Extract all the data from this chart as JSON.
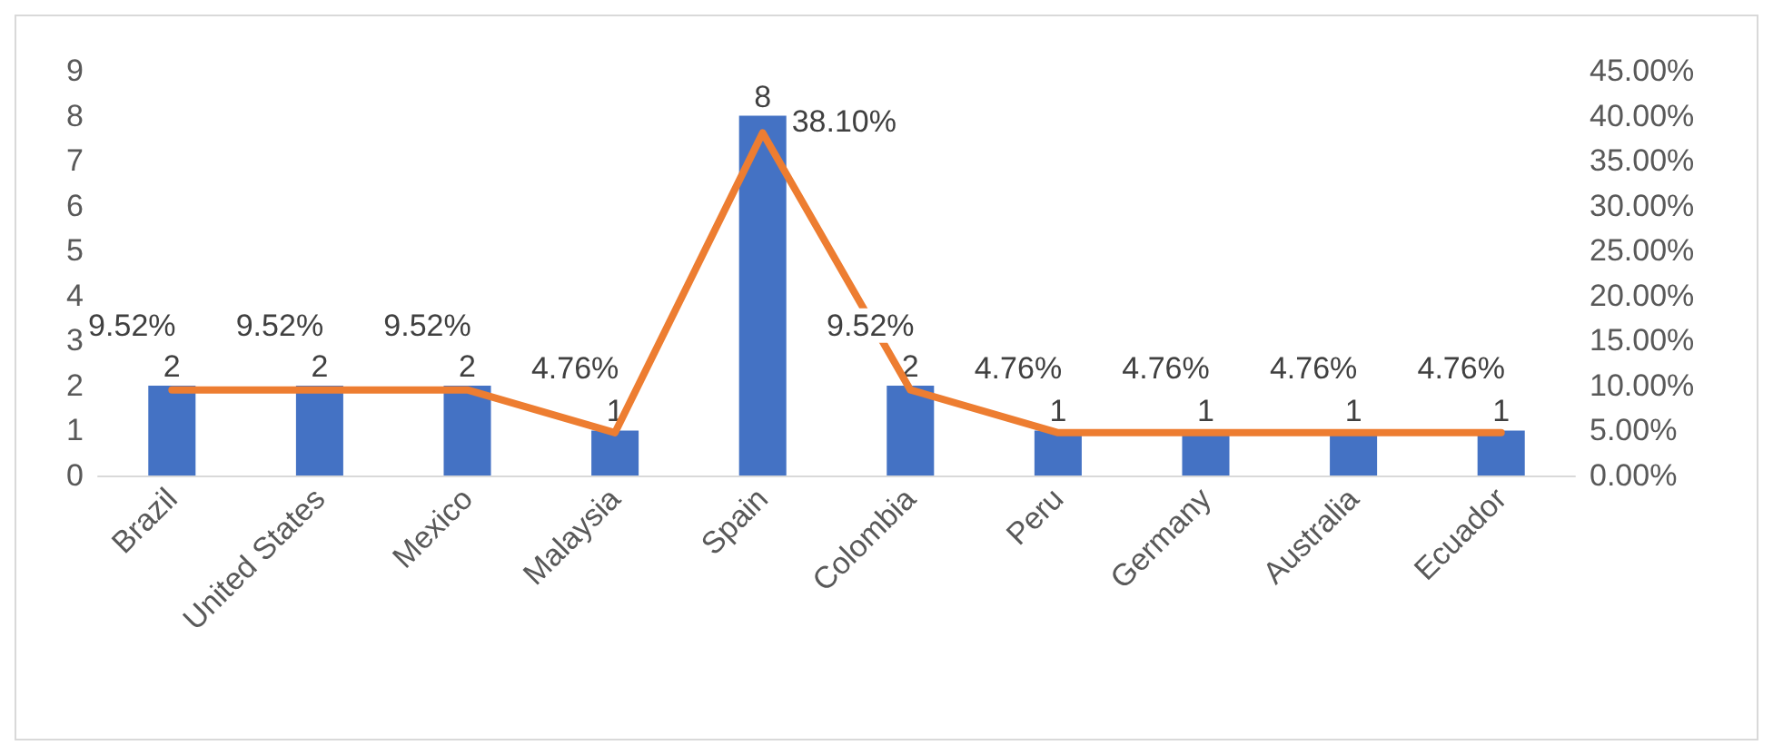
{
  "chart_data": {
    "type": "bar",
    "categories": [
      "Brazil",
      "United States",
      "Mexico",
      "Malaysia",
      "Spain",
      "Colombia",
      "Peru",
      "Germany",
      "Australia",
      "Ecuador"
    ],
    "series": [
      {
        "color": "#4472c4",
        "values": [
          2,
          2,
          2,
          1,
          8,
          2,
          1,
          1,
          1,
          1
        ],
        "value_labels": [
          "2",
          "2",
          "2",
          "1",
          "8",
          "2",
          "1",
          "1",
          "1",
          "1"
        ]
      },
      {
        "type": "line",
        "axis": "y2",
        "color": "#ed7d31",
        "values": [
          9.52,
          9.52,
          9.52,
          4.76,
          38.1,
          9.52,
          4.76,
          4.76,
          4.76,
          4.76
        ],
        "value_labels": [
          "9.52%",
          "9.52%",
          "9.52%",
          "4.76%",
          "38.10%",
          "9.52%",
          "4.76%",
          "4.76%",
          "4.76%",
          "4.76%"
        ]
      }
    ],
    "ylim": [
      0,
      9
    ],
    "yticks": [
      0,
      1,
      2,
      3,
      4,
      5,
      6,
      7,
      8,
      9
    ],
    "y2lim": [
      0,
      45
    ],
    "y2ticks": [
      {
        "value": 0,
        "label": "0.00%"
      },
      {
        "value": 5,
        "label": "5.00%"
      },
      {
        "value": 10,
        "label": "10.00%"
      },
      {
        "value": 15,
        "label": "15.00%"
      },
      {
        "value": 20,
        "label": "20.00%"
      },
      {
        "value": 25,
        "label": "25.00%"
      },
      {
        "value": 30,
        "label": "30.00%"
      },
      {
        "value": 35,
        "label": "35.00%"
      },
      {
        "value": 40,
        "label": "40.00%"
      },
      {
        "value": 45,
        "label": "45.00%"
      }
    ],
    "grid": false,
    "marker": "none",
    "line_style": "solid"
  }
}
